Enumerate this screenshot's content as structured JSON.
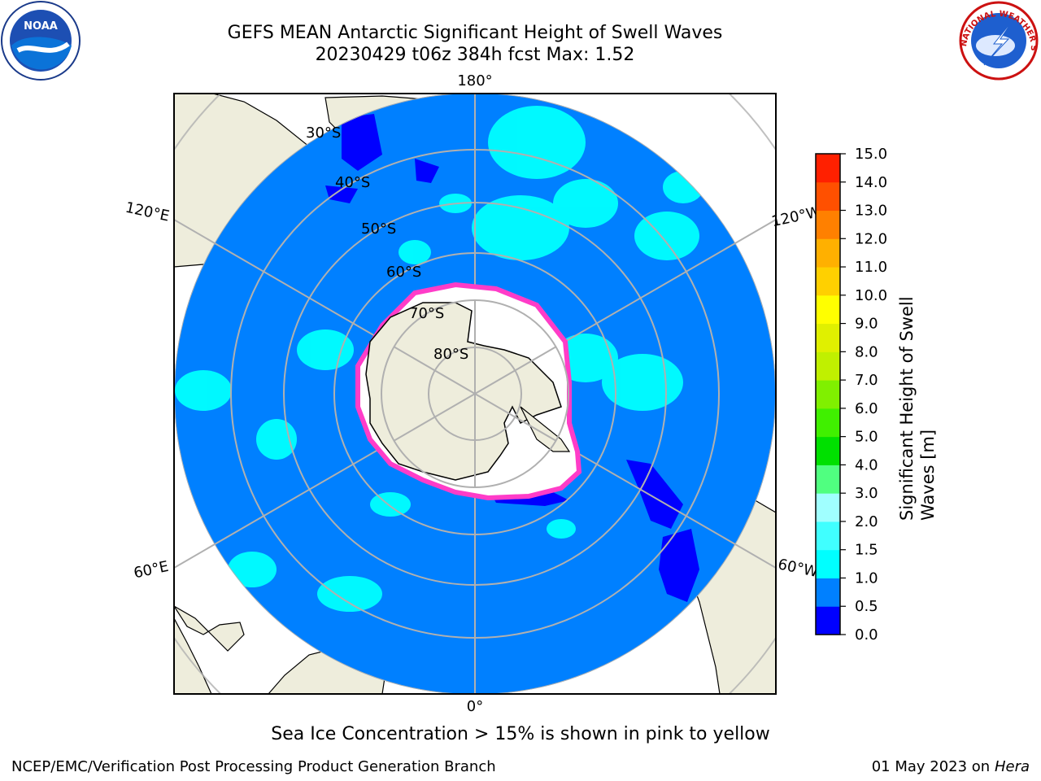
{
  "header": {
    "title_line1": "GEFS MEAN Antarctic Significant Height of Swell Waves",
    "title_line2": "20230429 t06z 384h fcst   Max: 1.52"
  },
  "logos": {
    "left": {
      "name": "noaa-logo",
      "text": "NOAA"
    },
    "right": {
      "name": "nws-logo",
      "text": "NATIONAL WEATHER SERVICE"
    }
  },
  "map": {
    "projection": "south-polar-stereographic",
    "graticule_labels": {
      "top": "180°",
      "bottom": "0°",
      "left_upper": "120°E",
      "right_upper": "120°W",
      "left_lower": "60°E",
      "right_lower": "60°W",
      "lat30": "30°S",
      "lat40": "40°S",
      "lat50": "50°S",
      "lat60": "60°S",
      "lat70": "70°S",
      "lat80": "80°S"
    },
    "colors": {
      "ocean_fill": "#0080ff",
      "land_fill": "#eeeddc",
      "grid": "#b0b0b0",
      "sea_ice_edge": "#ff3cc8",
      "ice_shelf": "#ffffff"
    }
  },
  "colorbar": {
    "title_line1": "Significant Height of Swell",
    "title_line2": "Waves [m]",
    "ticks": [
      "0.0",
      "0.5",
      "1.0",
      "1.5",
      "2.0",
      "3.0",
      "4.0",
      "5.0",
      "6.0",
      "7.0",
      "8.0",
      "9.0",
      "10.0",
      "11.0",
      "12.0",
      "13.0",
      "14.0",
      "15.0"
    ],
    "colors": [
      "#0000ff",
      "#0080ff",
      "#00ffff",
      "#40ffff",
      "#a0ffff",
      "#50ff80",
      "#00e000",
      "#40f000",
      "#80f000",
      "#c0f000",
      "#e0f000",
      "#ffff00",
      "#ffd000",
      "#ffb000",
      "#ff8000",
      "#ff5000",
      "#ff2000"
    ]
  },
  "footer": {
    "caption": "Sea Ice Concentration > 15% is shown in pink to yellow",
    "credit": "NCEP/EMC/Verification Post Processing Product Generation Branch",
    "date_prefix": "01 May 2023 on",
    "date_system": "Hera"
  }
}
